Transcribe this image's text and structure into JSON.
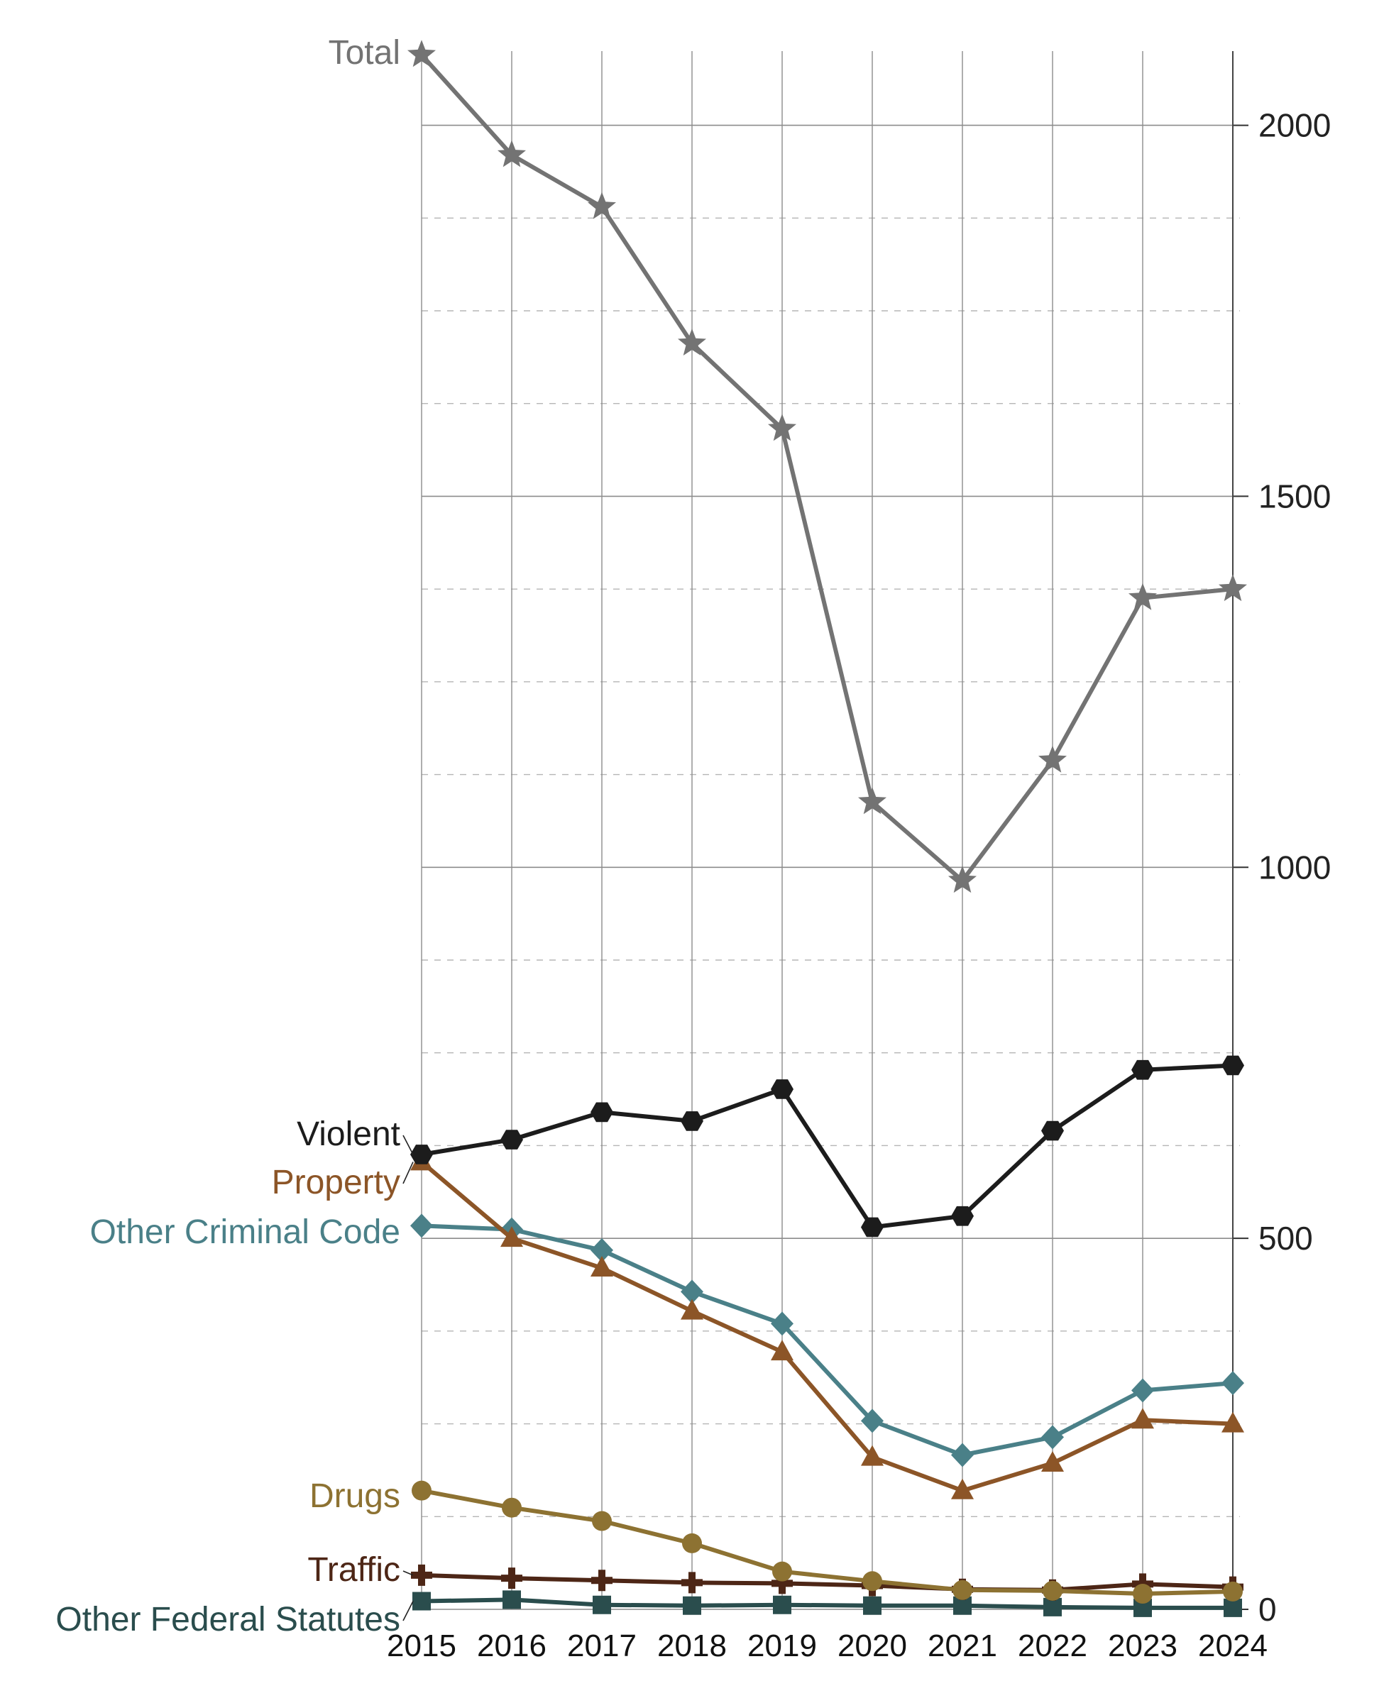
{
  "chart_data": {
    "type": "line",
    "title": "",
    "xlabel": "",
    "ylabel": "",
    "x": [
      2015,
      2016,
      2017,
      2018,
      2019,
      2020,
      2021,
      2022,
      2023,
      2024
    ],
    "x_tick_labels": [
      "2015",
      "2016",
      "2017",
      "2018",
      "2019",
      "2020",
      "2021",
      "2022",
      "2023",
      "2024"
    ],
    "ylim": [
      0,
      2100
    ],
    "y_ticks": [
      0,
      500,
      1000,
      1500,
      2000
    ],
    "y_tick_labels": [
      "0",
      "500",
      "1000",
      "1500",
      "2000"
    ],
    "y_axis_side": "right",
    "grid": {
      "major": "solid",
      "minor": "dashed",
      "vertical": "solid"
    },
    "legend": "inline-left",
    "series": [
      {
        "name": "Total",
        "color": "#737373",
        "marker": "star",
        "values": [
          2095,
          1960,
          1890,
          1706,
          1591,
          1088,
          982,
          1144,
          1363,
          1375
        ]
      },
      {
        "name": "Violent",
        "color": "#1c1c1c",
        "marker": "hexagon",
        "values": [
          613,
          633,
          670,
          658,
          701,
          515,
          530,
          645,
          727,
          733
        ]
      },
      {
        "name": "Property",
        "color": "#8c5527",
        "marker": "triangle",
        "values": [
          603,
          500,
          460,
          402,
          347,
          205,
          160,
          197,
          255,
          250
        ]
      },
      {
        "name": "Other Criminal Code",
        "color": "#4a8088",
        "marker": "diamond",
        "values": [
          517,
          512,
          484,
          428,
          385,
          254,
          208,
          232,
          295,
          305
        ]
      },
      {
        "name": "Drugs",
        "color": "#8d7232",
        "marker": "circle",
        "values": [
          160,
          137,
          119,
          89,
          51,
          38,
          26,
          25,
          21,
          24
        ]
      },
      {
        "name": "Traffic",
        "color": "#4d2616",
        "marker": "plus",
        "values": [
          46,
          42,
          39,
          36,
          35,
          32,
          27,
          26,
          34,
          30
        ]
      },
      {
        "name": "Other Federal Statutes",
        "color": "#2a4d4d",
        "marker": "square",
        "values": [
          11,
          13,
          6,
          5,
          6,
          5,
          5,
          3,
          2,
          2
        ]
      }
    ]
  }
}
